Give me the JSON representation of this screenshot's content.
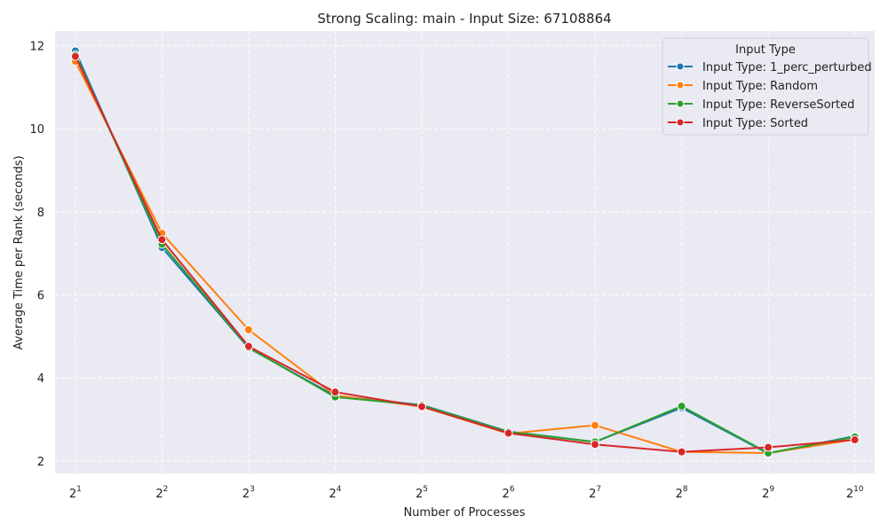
{
  "chart_data": {
    "type": "line",
    "title": "Strong Scaling: main - Input Size: 67108864",
    "xlabel": "Number of Processes",
    "ylabel": "Average Time per Rank (seconds)",
    "x_scale": "log2",
    "x_ticks": [
      {
        "base": "2",
        "exp": "1"
      },
      {
        "base": "2",
        "exp": "2"
      },
      {
        "base": "2",
        "exp": "3"
      },
      {
        "base": "2",
        "exp": "4"
      },
      {
        "base": "2",
        "exp": "5"
      },
      {
        "base": "2",
        "exp": "6"
      },
      {
        "base": "2",
        "exp": "7"
      },
      {
        "base": "2",
        "exp": "8"
      },
      {
        "base": "2",
        "exp": "9"
      },
      {
        "base": "2",
        "exp": "10"
      }
    ],
    "x": [
      2,
      4,
      8,
      16,
      32,
      64,
      128,
      256,
      512,
      1024
    ],
    "xlim": [
      1.7,
      1200
    ],
    "ylim": [
      1.7,
      12.35
    ],
    "y_ticks": [
      "2",
      "4",
      "6",
      "8",
      "10",
      "12"
    ],
    "grid": true,
    "legend_title": "Input Type",
    "legend_position": "top-right",
    "series": [
      {
        "name": "Input Type: 1_perc_perturbed",
        "color": "#1f77b4",
        "values": [
          11.87,
          7.14,
          4.72,
          3.57,
          3.35,
          2.71,
          2.46,
          3.28,
          2.18,
          2.6
        ]
      },
      {
        "name": "Input Type: Random",
        "color": "#ff7f0e",
        "values": [
          11.62,
          7.48,
          5.16,
          3.58,
          3.31,
          2.66,
          2.86,
          2.22,
          2.19,
          2.52
        ]
      },
      {
        "name": "Input Type: ReverseSorted",
        "color": "#2ca02c",
        "values": [
          11.78,
          7.22,
          4.73,
          3.54,
          3.34,
          2.7,
          2.46,
          3.32,
          2.19,
          2.58
        ]
      },
      {
        "name": "Input Type: Sorted",
        "color": "#d62728",
        "values": [
          11.74,
          7.33,
          4.76,
          3.66,
          3.31,
          2.67,
          2.4,
          2.22,
          2.33,
          2.51
        ]
      }
    ]
  }
}
